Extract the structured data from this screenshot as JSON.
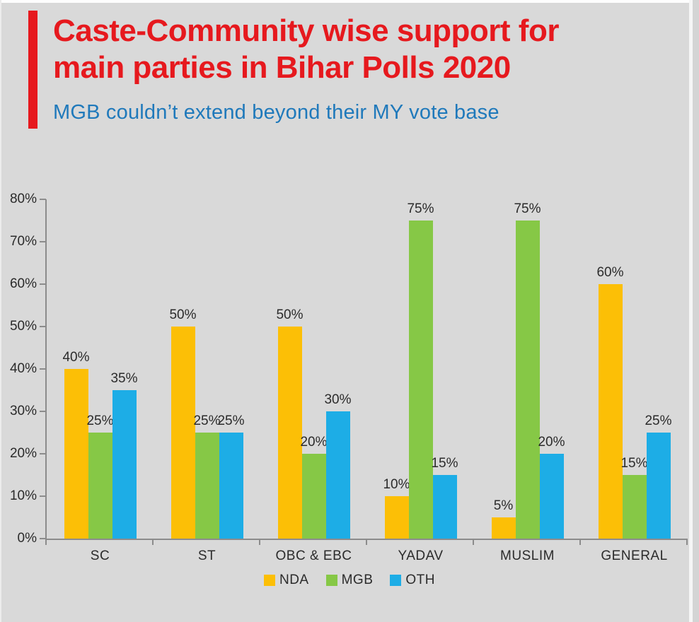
{
  "header": {
    "title_line1": "Caste-Community wise support for",
    "title_line2": "main parties in Bihar Polls 2020",
    "subtitle": "MGB couldn’t extend beyond their MY vote base",
    "title_color": "#e6191e",
    "subtitle_color": "#1f79bb",
    "accent_bar_color": "#e6191e"
  },
  "chart_data": {
    "type": "bar",
    "categories": [
      "SC",
      "ST",
      "OBC & EBC",
      "YADAV",
      "MUSLIM",
      "GENERAL"
    ],
    "series": [
      {
        "name": "NDA",
        "color": "#fcbf06",
        "values": [
          40,
          50,
          50,
          10,
          5,
          60
        ]
      },
      {
        "name": "MGB",
        "color": "#86c846",
        "values": [
          25,
          25,
          20,
          75,
          75,
          15
        ]
      },
      {
        "name": "OTH",
        "color": "#1dade6",
        "values": [
          35,
          25,
          30,
          15,
          20,
          25
        ]
      }
    ],
    "ylim": [
      0,
      80
    ],
    "ytick_step": 10,
    "ytick_labels": [
      "0%",
      "10%",
      "20%",
      "30%",
      "40%",
      "50%",
      "60%",
      "70%",
      "80%"
    ],
    "data_labels": [
      [
        "40%",
        "50%",
        "50%",
        "10%",
        "5%",
        "60%"
      ],
      [
        "25%",
        "25%",
        "20%",
        "75%",
        "75%",
        "15%"
      ],
      [
        "35%",
        "25%",
        "30%",
        "15%",
        "20%",
        "25%"
      ]
    ],
    "grid": false,
    "legend_position": "bottom",
    "axis_color": "#8c8c8c",
    "label_color": "#2b2b2b"
  }
}
